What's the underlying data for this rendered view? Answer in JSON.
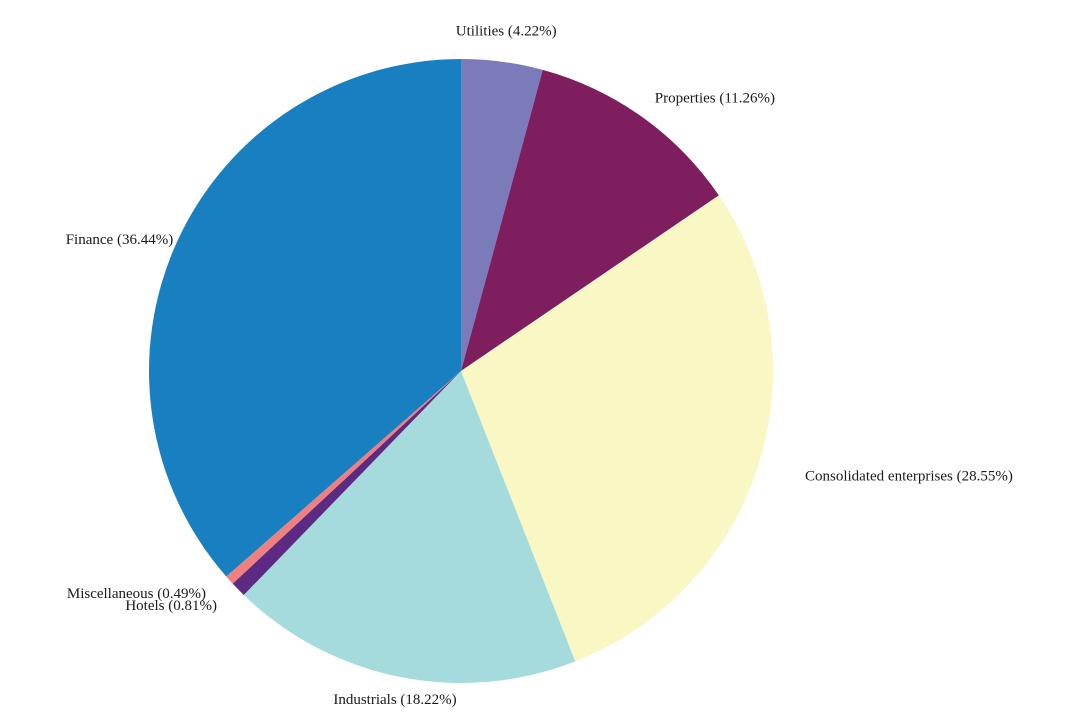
{
  "chart_data": {
    "type": "pie",
    "title": "",
    "start_angle": "12 o'clock",
    "direction": "clockwise",
    "slices": [
      {
        "name": "Utilities",
        "value": 4.22,
        "label": "Utilities (4.22%)",
        "color": "#7b7bba"
      },
      {
        "name": "Properties",
        "value": 11.26,
        "label": "Properties (11.26%)",
        "color": "#7e1e5f"
      },
      {
        "name": "Consolidated enterprises",
        "value": 28.55,
        "label": "Consolidated enterprises (28.55%)",
        "color": "#f9f7c3"
      },
      {
        "name": "Industrials",
        "value": 18.22,
        "label": "Industrials (18.22%)",
        "color": "#a5dbdd"
      },
      {
        "name": "Hotels",
        "value": 0.81,
        "label": "Hotels (0.81%)",
        "color": "#5c2a82"
      },
      {
        "name": "Miscellaneous",
        "value": 0.49,
        "label": "Miscellaneous (0.49%)",
        "color": "#f08080"
      },
      {
        "name": "Finance",
        "value": 36.44,
        "label": "Finance (36.44%)",
        "color": "#1880c0"
      }
    ]
  }
}
